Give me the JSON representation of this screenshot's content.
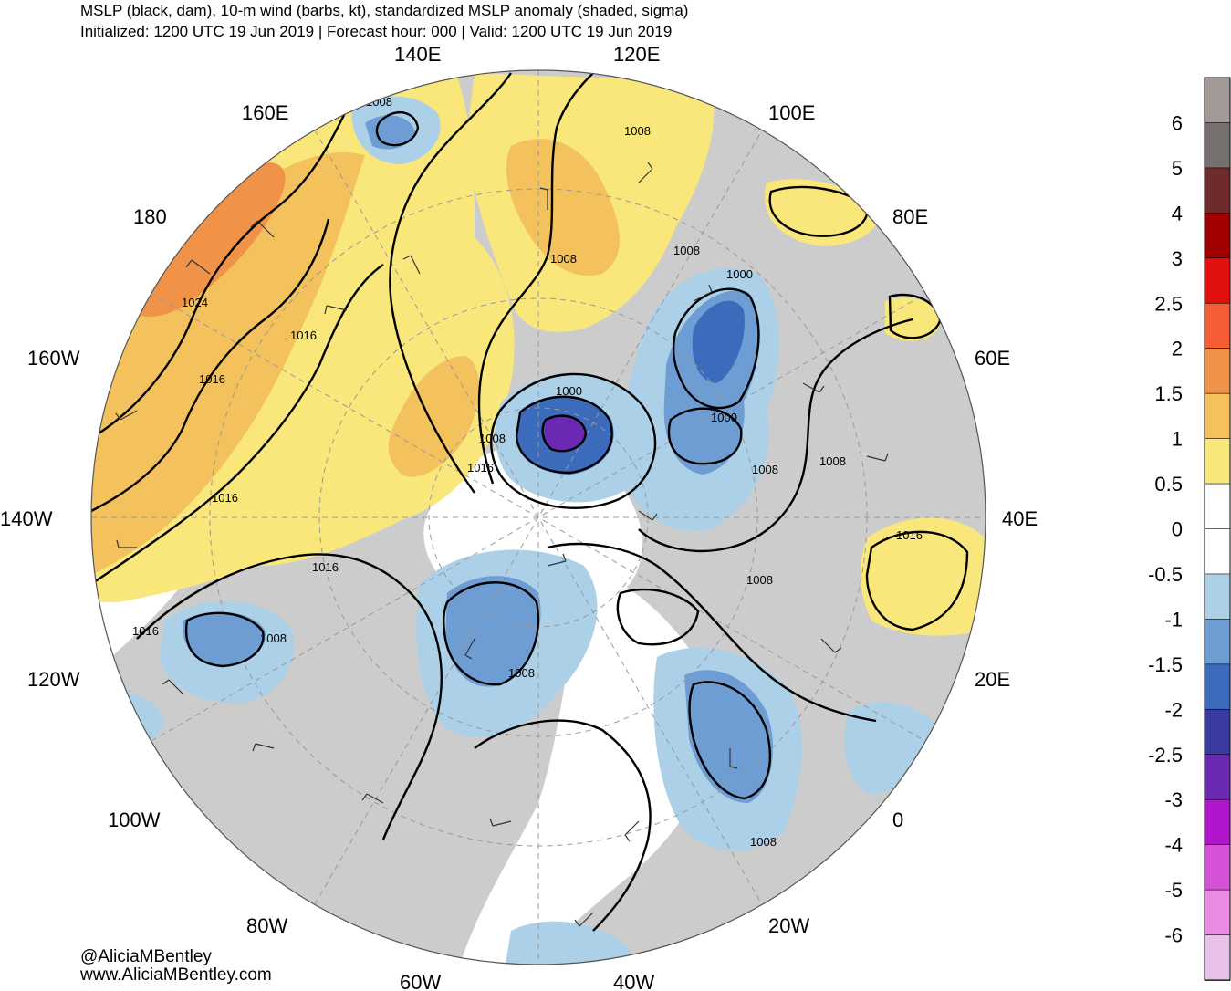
{
  "header": {
    "title": "MSLP (black, dam), 10-m wind (barbs, kt), standardized MSLP anomaly (shaded, sigma)",
    "subtitle": "Initialized: 1200 UTC 19 Jun 2019 | Forecast hour: 000 | Valid: 1200 UTC 19 Jun 2019"
  },
  "credits": {
    "handle": "@AliciaMBentley",
    "website": "www.AliciaMBentley.com"
  },
  "longitude_labels": [
    "140E",
    "120E",
    "160E",
    "100E",
    "180",
    "80E",
    "160W",
    "60E",
    "140W",
    "40E",
    "120W",
    "20E",
    "100W",
    "0",
    "80W",
    "20W",
    "60W",
    "40W"
  ],
  "isobar_labels": [
    "1008",
    "1008",
    "1008",
    "1008",
    "1000",
    "1024",
    "1016",
    "1016",
    "1000",
    "1000",
    "1008",
    "1016",
    "1008",
    "1008",
    "1016",
    "1016",
    "1016",
    "1008",
    "1008",
    "1008",
    "1016",
    "1008"
  ],
  "colorbar": {
    "labels": [
      "6",
      "5",
      "4",
      "3",
      "2.5",
      "2",
      "1.5",
      "1",
      "0.5",
      "0",
      "-0.5",
      "-1",
      "-1.5",
      "-2",
      "-2.5",
      "-3",
      "-4",
      "-5",
      "-6"
    ],
    "colors": [
      "#a39a98",
      "#76706e",
      "#6e2b2b",
      "#a00000",
      "#e31010",
      "#f45d35",
      "#f09248",
      "#f3c25d",
      "#f9e77b",
      "#ffffff",
      "#ffffff",
      "#acd0e8",
      "#6d9dd2",
      "#3c6bbb",
      "#3b3aa0",
      "#6b28b2",
      "#b016cc",
      "#d552d6",
      "#e98ae3",
      "#e9c1e8"
    ]
  },
  "colors": {
    "land": "#cccccc",
    "ocean": "#ffffff",
    "isobar": "#000000"
  }
}
